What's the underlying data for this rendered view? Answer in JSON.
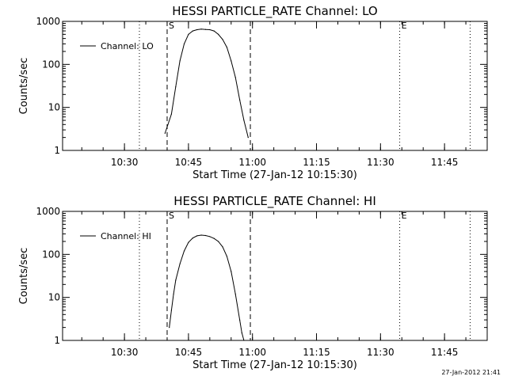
{
  "footer": {
    "timestamp": "27-Jan-2012 21:41"
  },
  "chart_data": [
    {
      "type": "line",
      "title": "HESSI PARTICLE_RATE Channel: LO",
      "xlabel": "Start Time (27-Jan-12 10:15:30)",
      "ylabel": "Counts/sec",
      "x_ticks": [
        "10:30",
        "10:45",
        "11:00",
        "11:15",
        "11:30",
        "11:45"
      ],
      "y_ticks": [
        "1",
        "10",
        "100",
        "1000"
      ],
      "ylog": true,
      "xlim": [
        "10:15:30",
        "11:55:00"
      ],
      "ylim": [
        1,
        1000
      ],
      "markers": [
        {
          "label": "",
          "time": "10:33:30",
          "style": "dotted"
        },
        {
          "label": "S",
          "time": "10:40:00",
          "style": "dashed"
        },
        {
          "label": "",
          "time": "10:59:30",
          "style": "dashed"
        },
        {
          "label": "E",
          "time": "11:34:30",
          "style": "dotted"
        },
        {
          "label": "",
          "time": "11:51:00",
          "style": "dotted"
        }
      ],
      "legend": {
        "position": "top-left",
        "entries": [
          "Channel: LO"
        ]
      },
      "series": [
        {
          "name": "Channel: LO",
          "x": [
            "10:39:30",
            "10:41:00",
            "10:42:00",
            "10:43:00",
            "10:44:00",
            "10:45:00",
            "10:46:00",
            "10:47:00",
            "10:48:00",
            "10:49:00",
            "10:50:00",
            "10:51:00",
            "10:52:00",
            "10:53:00",
            "10:54:00",
            "10:55:00",
            "10:56:00",
            "10:57:00",
            "10:58:00",
            "10:59:00"
          ],
          "y": [
            2.5,
            7,
            30,
            120,
            300,
            500,
            600,
            640,
            660,
            650,
            640,
            600,
            500,
            380,
            250,
            120,
            50,
            15,
            5,
            2
          ]
        }
      ]
    },
    {
      "type": "line",
      "title": "HESSI PARTICLE_RATE Channel: HI",
      "xlabel": "Start Time (27-Jan-12 10:15:30)",
      "ylabel": "Counts/sec",
      "x_ticks": [
        "10:30",
        "10:45",
        "11:00",
        "11:15",
        "11:30",
        "11:45"
      ],
      "y_ticks": [
        "1",
        "10",
        "100",
        "1000"
      ],
      "ylog": true,
      "xlim": [
        "10:15:30",
        "11:55:00"
      ],
      "ylim": [
        1,
        1000
      ],
      "markers": [
        {
          "label": "",
          "time": "10:33:30",
          "style": "dotted"
        },
        {
          "label": "S",
          "time": "10:40:00",
          "style": "dashed"
        },
        {
          "label": "",
          "time": "10:59:30",
          "style": "dashed"
        },
        {
          "label": "E",
          "time": "11:34:30",
          "style": "dotted"
        },
        {
          "label": "",
          "time": "11:51:00",
          "style": "dotted"
        }
      ],
      "legend": {
        "position": "top-left",
        "entries": [
          "Channel: HI"
        ]
      },
      "series": [
        {
          "name": "Channel: HI",
          "x": [
            "10:40:30",
            "10:41:00",
            "10:41:30",
            "10:42:00",
            "10:43:00",
            "10:44:00",
            "10:45:00",
            "10:46:00",
            "10:47:00",
            "10:48:00",
            "10:49:00",
            "10:50:00",
            "10:51:00",
            "10:52:00",
            "10:53:00",
            "10:54:00",
            "10:55:00",
            "10:56:00",
            "10:57:00",
            "10:57:30",
            "10:58:00"
          ],
          "y": [
            2,
            5,
            12,
            25,
            60,
            120,
            190,
            240,
            270,
            280,
            275,
            260,
            235,
            200,
            150,
            90,
            40,
            12,
            3,
            1.5,
            1
          ]
        }
      ]
    }
  ]
}
